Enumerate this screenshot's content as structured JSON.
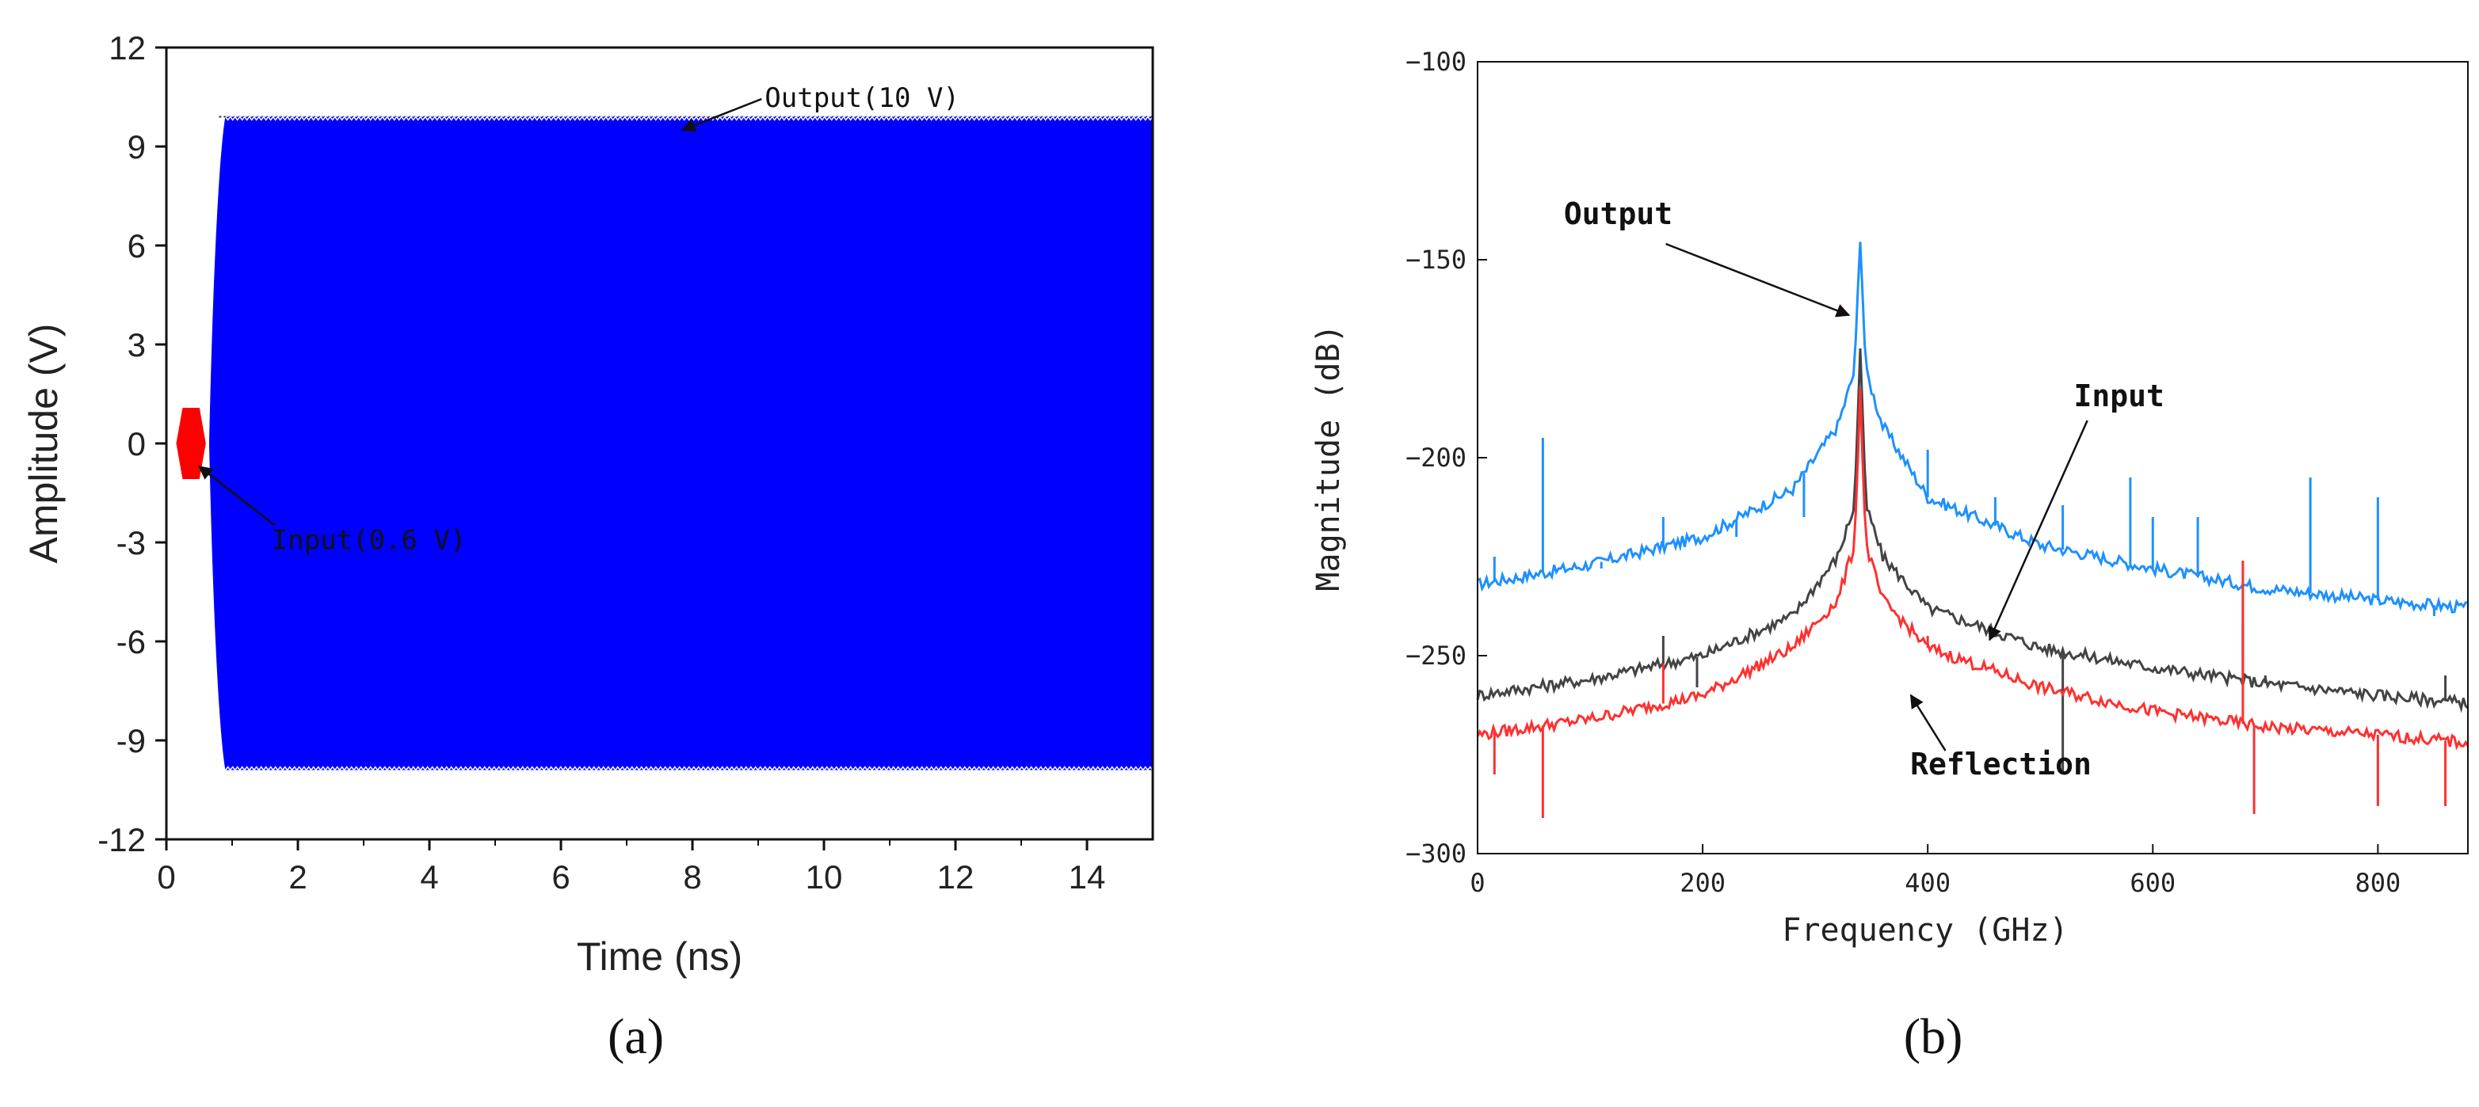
{
  "chart_data": [
    {
      "type": "line",
      "panel_label": "(a)",
      "xlabel": "Time (ns)",
      "ylabel": "Amplitude (V)",
      "xlim": [
        0,
        15
      ],
      "ylim": [
        -12,
        12
      ],
      "xticks": [
        0,
        2,
        4,
        6,
        8,
        10,
        12,
        14
      ],
      "yticks": [
        -12,
        -9,
        -6,
        -3,
        0,
        3,
        6,
        9,
        12
      ],
      "grid": false,
      "series": [
        {
          "role": "output",
          "color": "#0000ff",
          "amplitude": 9.9,
          "start_time": 0.65,
          "rise_time": 0.25,
          "end_time": 15
        },
        {
          "role": "input",
          "color": "#ff0000",
          "amplitude": 0.6,
          "start_time": 0.15,
          "end_time": 0.6
        }
      ],
      "reference_line": {
        "y": 9.9,
        "x_start": 0.8,
        "x_end": 15
      },
      "annotations": [
        {
          "text": "Output(10 V)",
          "text_x": 9.1,
          "text_y": 10.2,
          "arrow_to": [
            7.85,
            9.5
          ]
        },
        {
          "text": "Input(0.6 V)",
          "text_x": 1.6,
          "text_y": -3.2,
          "arrow_to": [
            0.5,
            -0.7
          ]
        }
      ]
    },
    {
      "type": "line",
      "panel_label": "(b)",
      "xlabel": "Frequency (GHz)",
      "ylabel": "Magnitude (dB)",
      "xlim": [
        0,
        880
      ],
      "ylim": [
        -300,
        -100
      ],
      "xticks": [
        0,
        200,
        400,
        600,
        800
      ],
      "yticks": [
        -300,
        -250,
        -200,
        -150,
        -100
      ],
      "grid": false,
      "peak_frequency": 340,
      "series": [
        {
          "name": "Output",
          "color": "#1e90ff",
          "baseline_points": [
            [
              0,
              -232
            ],
            [
              100,
              -227
            ],
            [
              200,
              -220
            ],
            [
              280,
              -208
            ],
            [
              320,
              -192
            ],
            [
              335,
              -178
            ],
            [
              340,
              -144
            ],
            [
              345,
              -178
            ],
            [
              360,
              -192
            ],
            [
              400,
              -210
            ],
            [
              500,
              -222
            ],
            [
              600,
              -228
            ],
            [
              700,
              -233
            ],
            [
              800,
              -236
            ],
            [
              880,
              -238
            ]
          ],
          "spikes": [
            [
              15,
              -225
            ],
            [
              58,
              -195
            ],
            [
              110,
              -228
            ],
            [
              165,
              -215
            ],
            [
              230,
              -220
            ],
            [
              290,
              -215
            ],
            [
              400,
              -198
            ],
            [
              460,
              -210
            ],
            [
              520,
              -212
            ],
            [
              580,
              -205
            ],
            [
              600,
              -215
            ],
            [
              640,
              -215
            ],
            [
              680,
              -250
            ],
            [
              740,
              -205
            ],
            [
              800,
              -210
            ],
            [
              850,
              -240
            ]
          ]
        },
        {
          "name": "Input",
          "color": "#444444",
          "baseline_points": [
            [
              0,
              -260
            ],
            [
              100,
              -256
            ],
            [
              200,
              -250
            ],
            [
              280,
              -240
            ],
            [
              320,
              -225
            ],
            [
              335,
              -212
            ],
            [
              340,
              -172
            ],
            [
              345,
              -212
            ],
            [
              360,
              -225
            ],
            [
              400,
              -238
            ],
            [
              500,
              -248
            ],
            [
              600,
              -253
            ],
            [
              700,
              -257
            ],
            [
              800,
              -260
            ],
            [
              880,
              -262
            ]
          ],
          "spikes": [
            [
              165,
              -245
            ],
            [
              195,
              -258
            ],
            [
              520,
              -280
            ],
            [
              680,
              -242
            ],
            [
              700,
              -255
            ],
            [
              860,
              -255
            ]
          ]
        },
        {
          "name": "Reflection",
          "color": "#ff3030",
          "baseline_points": [
            [
              0,
              -270
            ],
            [
              100,
              -266
            ],
            [
              200,
              -260
            ],
            [
              280,
              -248
            ],
            [
              320,
              -236
            ],
            [
              335,
              -222
            ],
            [
              340,
              -183
            ],
            [
              345,
              -222
            ],
            [
              360,
              -236
            ],
            [
              400,
              -248
            ],
            [
              500,
              -258
            ],
            [
              600,
              -264
            ],
            [
              700,
              -268
            ],
            [
              800,
              -270
            ],
            [
              880,
              -272
            ]
          ],
          "spikes": [
            [
              15,
              -280
            ],
            [
              58,
              -291
            ],
            [
              165,
              -252
            ],
            [
              400,
              -245
            ],
            [
              520,
              -260
            ],
            [
              680,
              -226
            ],
            [
              690,
              -290
            ],
            [
              800,
              -288
            ],
            [
              860,
              -288
            ]
          ]
        }
      ],
      "annotations": [
        {
          "text": "Output",
          "text_x": 125,
          "text_y": -141,
          "arrow_to": [
            330,
            -164
          ]
        },
        {
          "text": "Input",
          "text_x": 570,
          "text_y": -187,
          "arrow_to": [
            455,
            -246
          ]
        },
        {
          "text": "Reflection",
          "text_x": 465,
          "text_y": -280,
          "arrow_to": [
            385,
            -260
          ]
        }
      ]
    }
  ]
}
